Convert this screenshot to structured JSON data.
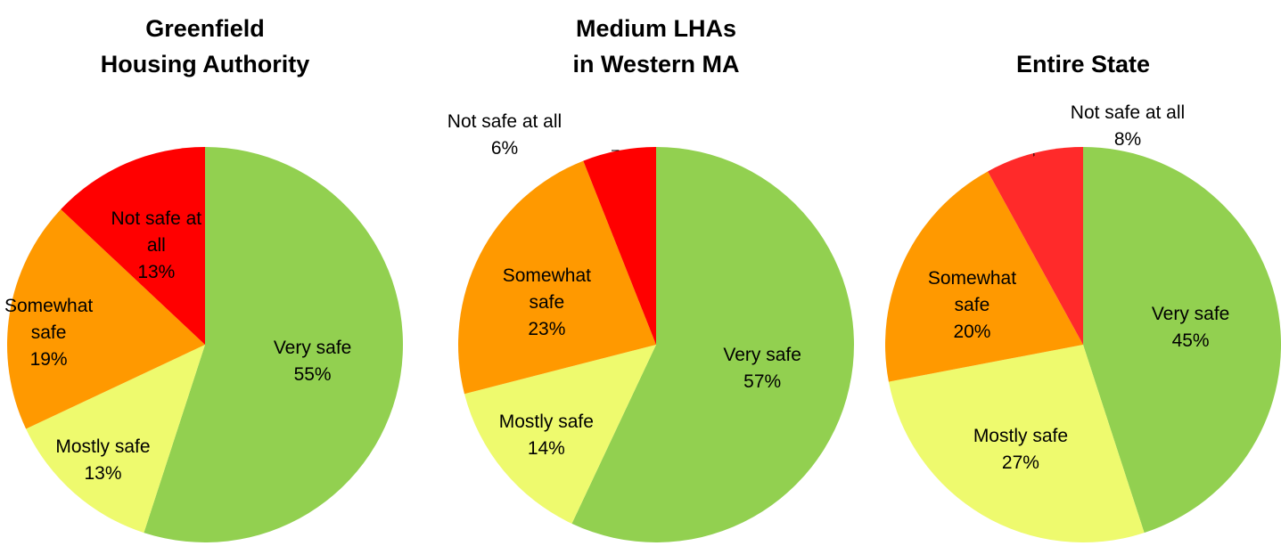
{
  "chart_data": [
    {
      "type": "pie",
      "title": [
        "Greenfield",
        "Housing Authority"
      ],
      "categories": [
        "Very safe",
        "Mostly safe",
        "Somewhat safe",
        "Not safe at all"
      ],
      "values": [
        55,
        13,
        19,
        13
      ],
      "value_labels": [
        "55%",
        "13%",
        "19%",
        "13%"
      ],
      "colors": [
        "#92d050",
        "#eefa6e",
        "#ff9900",
        "#ff0000"
      ]
    },
    {
      "type": "pie",
      "title": [
        "Medium LHAs",
        "in Western MA"
      ],
      "categories": [
        "Very safe",
        "Mostly safe",
        "Somewhat safe",
        "Not safe at all"
      ],
      "values": [
        57,
        14,
        23,
        6
      ],
      "value_labels": [
        "57%",
        "14%",
        "23%",
        "6%"
      ],
      "colors": [
        "#92d050",
        "#eefa6e",
        "#ff9900",
        "#ff0000"
      ]
    },
    {
      "type": "pie",
      "title": [
        "Entire State"
      ],
      "categories": [
        "Very safe",
        "Mostly safe",
        "Somewhat safe",
        "Not safe at all"
      ],
      "values": [
        45,
        27,
        20,
        8
      ],
      "value_labels": [
        "45%",
        "27%",
        "20%",
        "8%"
      ],
      "colors": [
        "#92d050",
        "#eefa6e",
        "#ff9900",
        "#ff2a2a"
      ]
    }
  ]
}
